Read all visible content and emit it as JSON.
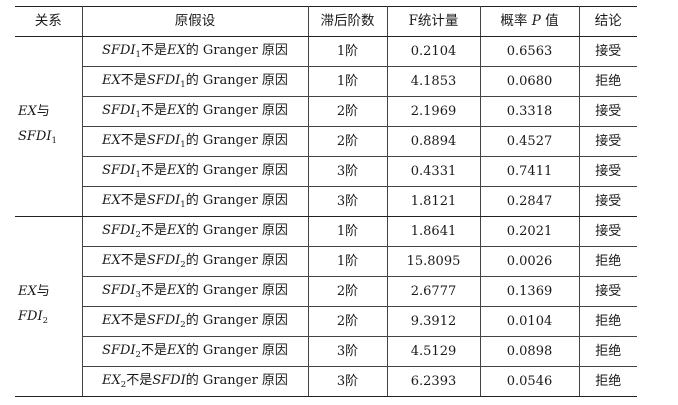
{
  "headers": {
    "relation": "关系",
    "hypothesis": "原假设",
    "lag": "滞后阶数",
    "fstat": "F统计量",
    "prob_pre": "概率",
    "prob_p": "P",
    "prob_post": "值",
    "result": "结论"
  },
  "groups": [
    {
      "relation": {
        "line1_var": "EX",
        "line1_conj": "与",
        "line2_var": "SFDI",
        "line2_sub": "1"
      },
      "rows": [
        {
          "h_a": "SFDI",
          "h_a_sub": "1",
          "h_not": "不是",
          "h_b": "EX",
          "h_b_sub": "",
          "h_tail": "的 Granger 原因",
          "lag": "1阶",
          "f": "0.2104",
          "p": "0.6563",
          "result": "接受"
        },
        {
          "h_a": "EX",
          "h_a_sub": "",
          "h_not": "不是",
          "h_b": "SFDI",
          "h_b_sub": "1",
          "h_tail": "的 Granger 原因",
          "lag": "1阶",
          "f": "4.1853",
          "p": "0.0680",
          "result": "拒绝"
        },
        {
          "h_a": "SFDI",
          "h_a_sub": "1",
          "h_not": "不是",
          "h_b": "EX",
          "h_b_sub": "",
          "h_tail": "的 Granger 原因",
          "lag": "2阶",
          "f": "2.1969",
          "p": "0.3318",
          "result": "接受"
        },
        {
          "h_a": "EX",
          "h_a_sub": "",
          "h_not": "不是",
          "h_b": "SFDI",
          "h_b_sub": "1",
          "h_tail": "的 Granger 原因",
          "lag": "2阶",
          "f": "0.8894",
          "p": "0.4527",
          "result": "接受"
        },
        {
          "h_a": "SFDI",
          "h_a_sub": "1",
          "h_not": "不是",
          "h_b": "EX",
          "h_b_sub": "",
          "h_tail": "的 Granger 原因",
          "lag": "3阶",
          "f": "0.4331",
          "p": "0.7411",
          "result": "接受"
        },
        {
          "h_a": "EX",
          "h_a_sub": "",
          "h_not": "不是",
          "h_b": "SFDI",
          "h_b_sub": "1",
          "h_tail": "的 Granger 原因",
          "lag": "3阶",
          "f": "1.8121",
          "p": "0.2847",
          "result": "接受"
        }
      ]
    },
    {
      "relation": {
        "line1_var": "EX",
        "line1_conj": "与",
        "line2_var": "FDI",
        "line2_sub": "2"
      },
      "rows": [
        {
          "h_a": "SFDI",
          "h_a_sub": "2",
          "h_not": "不是",
          "h_b": "EX",
          "h_b_sub": "",
          "h_tail": "的 Granger 原因",
          "lag": "1阶",
          "f": "1.8641",
          "p": "0.2021",
          "result": "接受"
        },
        {
          "h_a": "EX",
          "h_a_sub": "",
          "h_not": "不是",
          "h_b": "SFDI",
          "h_b_sub": "2",
          "h_tail": "的 Granger 原因",
          "lag": "1阶",
          "f": "15.8095",
          "p": "0.0026",
          "result": "拒绝"
        },
        {
          "h_a": "SFDI",
          "h_a_sub": "3",
          "h_not": "不是",
          "h_b": "EX",
          "h_b_sub": "",
          "h_tail": "的 Granger 原因",
          "lag": "2阶",
          "f": "2.6777",
          "p": "0.1369",
          "result": "接受"
        },
        {
          "h_a": "EX",
          "h_a_sub": "",
          "h_not": "不是",
          "h_b": "SFDI",
          "h_b_sub": "2",
          "h_tail": "的 Granger 原因",
          "lag": "2阶",
          "f": "9.3912",
          "p": "0.0104",
          "result": "拒绝"
        },
        {
          "h_a": "SFDI",
          "h_a_sub": "2",
          "h_not": "不是",
          "h_b": "EX",
          "h_b_sub": "",
          "h_tail": "的 Granger 原因",
          "lag": "3阶",
          "f": "4.5129",
          "p": "0.0898",
          "result": "拒绝"
        },
        {
          "h_a": "EX",
          "h_a_sub": "2",
          "h_not": "不是",
          "h_b": "SFDI",
          "h_b_sub": "",
          "h_tail": "的 Granger 原因",
          "lag": "3阶",
          "f": "6.2393",
          "p": "0.0546",
          "result": "拒绝"
        }
      ]
    }
  ]
}
